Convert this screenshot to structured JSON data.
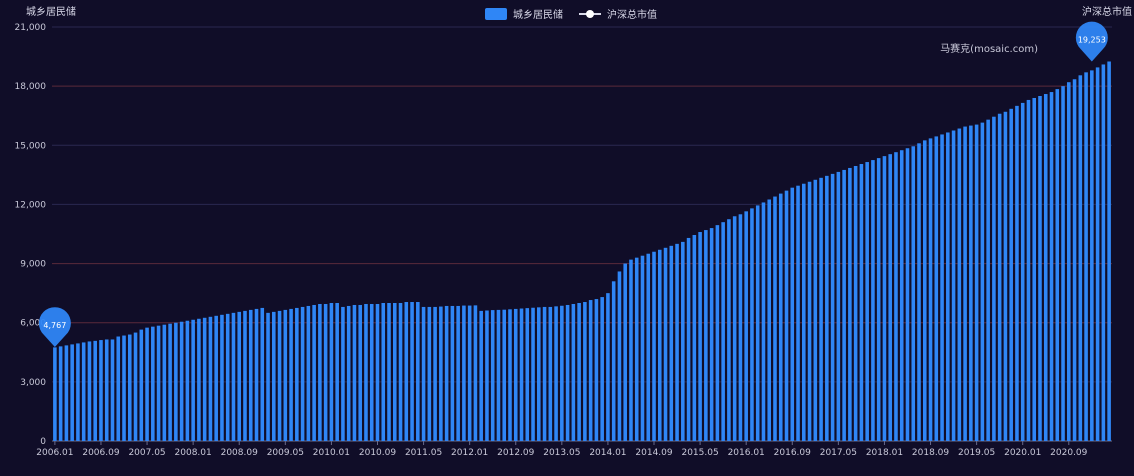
{
  "chart_data": {
    "type": "bar",
    "ylabel": "城乡居民储",
    "y2label": "沪深总市值",
    "watermark": "马赛克(mosaic.com)",
    "ylim": [
      0,
      21000
    ],
    "yticks": [
      0,
      3000,
      6000,
      9000,
      12000,
      15000,
      18000,
      21000
    ],
    "ytick_labels": [
      "0",
      "3,000",
      "6,000",
      "9,000",
      "12,000",
      "15,000",
      "18,000",
      "21,000"
    ],
    "grid": true,
    "legend_placement": "top-center",
    "series": [
      {
        "name": "城乡居民储",
        "type": "bar",
        "color": "#2f86f6"
      },
      {
        "name": "沪深总市值",
        "type": "line",
        "color": "#d8d8e8"
      }
    ],
    "x_tick_labels": [
      "2006.01",
      "2006.09",
      "2007.05",
      "2008.01",
      "2008.09",
      "2009.05",
      "2010.01",
      "2010.09",
      "2011.05",
      "2012.01",
      "2012.09",
      "2013.05",
      "2014.01",
      "2014.09",
      "2015.05",
      "2016.01",
      "2016.09",
      "2017.05",
      "2018.01",
      "2018.09",
      "2019.05",
      "2020.01",
      "2020.09"
    ],
    "values": [
      4750,
      4800,
      4850,
      4900,
      4950,
      5000,
      5050,
      5080,
      5120,
      5150,
      5150,
      5300,
      5350,
      5400,
      5500,
      5650,
      5750,
      5800,
      5850,
      5900,
      5950,
      6000,
      6050,
      6100,
      6150,
      6200,
      6250,
      6300,
      6350,
      6400,
      6450,
      6500,
      6550,
      6600,
      6650,
      6700,
      6750,
      6500,
      6550,
      6600,
      6650,
      6700,
      6750,
      6800,
      6850,
      6900,
      6950,
      6950,
      7000,
      7000,
      6800,
      6850,
      6900,
      6900,
      6950,
      6950,
      6950,
      7000,
      7000,
      7000,
      7000,
      7050,
      7050,
      7050,
      6800,
      6800,
      6800,
      6820,
      6850,
      6850,
      6850,
      6870,
      6870,
      6880,
      6600,
      6620,
      6640,
      6650,
      6660,
      6680,
      6700,
      6720,
      6740,
      6760,
      6780,
      6800,
      6800,
      6830,
      6860,
      6900,
      6950,
      7000,
      7050,
      7150,
      7200,
      7300,
      7500,
      8100,
      8600,
      9000,
      9200,
      9300,
      9400,
      9500,
      9600,
      9700,
      9800,
      9900,
      10000,
      10100,
      10300,
      10450,
      10600,
      10700,
      10800,
      10950,
      11100,
      11250,
      11400,
      11500,
      11650,
      11800,
      11950,
      12100,
      12250,
      12400,
      12550,
      12700,
      12850,
      12950,
      13050,
      13150,
      13250,
      13350,
      13450,
      13550,
      13650,
      13750,
      13850,
      13950,
      14050,
      14150,
      14250,
      14350,
      14450,
      14550,
      14650,
      14750,
      14850,
      14950,
      15100,
      15250,
      15350,
      15450,
      15550,
      15650,
      15750,
      15850,
      15950,
      16000,
      16050,
      16150,
      16300,
      16450,
      16600,
      16700,
      16850,
      17000,
      17150,
      17300,
      17400,
      17500,
      17600,
      17700,
      17850,
      18000,
      18200,
      18350,
      18550,
      18700,
      18800,
      18950,
      19100,
      19250
    ],
    "markpoints": [
      {
        "label": "4,767",
        "index": 0,
        "value": 4767
      },
      {
        "label": "19,253",
        "index": 180,
        "value": 19253
      }
    ]
  }
}
